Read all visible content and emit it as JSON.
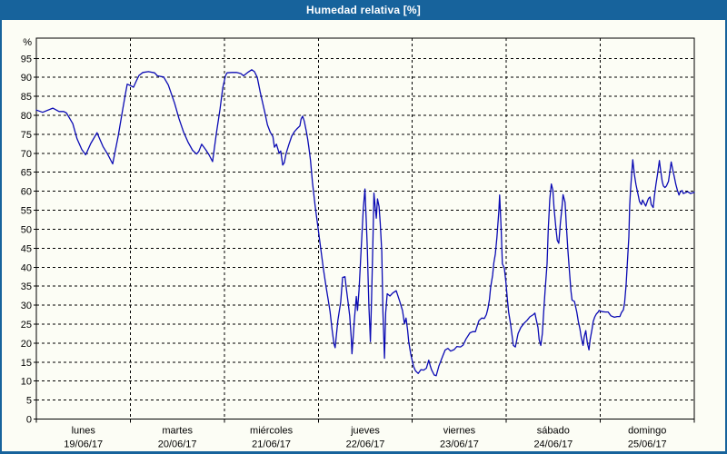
{
  "window": {
    "title": "Humedad relativa [%]"
  },
  "colors": {
    "frame_blue": "#17639c",
    "background": "#fcfdf5",
    "line_blue": "#0b0bb4",
    "grid_black": "#000000"
  },
  "chart_data": {
    "type": "line",
    "title": "Humedad relativa [%]",
    "ylabel": "%",
    "ylim": [
      0,
      100.5
    ],
    "y_tick_step": 5,
    "y_tick_max": 95,
    "grid": "dashed",
    "legend": "none",
    "x_axis_unit": "days",
    "x_days": [
      {
        "name": "lunes",
        "date": "19/06/17"
      },
      {
        "name": "martes",
        "date": "20/06/17"
      },
      {
        "name": "miércoles",
        "date": "21/06/17"
      },
      {
        "name": "jueves",
        "date": "22/06/17"
      },
      {
        "name": "viernes",
        "date": "23/06/17"
      },
      {
        "name": "sábado",
        "date": "24/06/17"
      },
      {
        "name": "domingo",
        "date": "25/06/17"
      }
    ],
    "series": [
      {
        "name": "Humedad relativa [%]",
        "x_unit": "hours_since_2017-06-19T00:00",
        "points": [
          [
            0.0,
            81.4
          ],
          [
            1.6,
            80.8
          ],
          [
            4.2,
            81.9
          ],
          [
            5.8,
            81.0
          ],
          [
            7.0,
            81.0
          ],
          [
            7.7,
            80.6
          ],
          [
            9.3,
            77.8
          ],
          [
            10.4,
            73.8
          ],
          [
            11.6,
            71.0
          ],
          [
            12.6,
            69.6
          ],
          [
            13.9,
            72.6
          ],
          [
            15.5,
            75.4
          ],
          [
            17.0,
            71.8
          ],
          [
            18.2,
            69.8
          ],
          [
            19.5,
            67.2
          ],
          [
            20.9,
            74.6
          ],
          [
            22.1,
            81.8
          ],
          [
            22.8,
            86.0
          ],
          [
            23.2,
            88.2
          ],
          [
            24.1,
            87.8
          ],
          [
            24.8,
            87.4
          ],
          [
            25.5,
            89.0
          ],
          [
            26.2,
            90.5
          ],
          [
            27.2,
            91.3
          ],
          [
            28.6,
            91.5
          ],
          [
            30.2,
            91.2
          ],
          [
            30.9,
            90.4
          ],
          [
            32.5,
            90.1
          ],
          [
            33.7,
            88.0
          ],
          [
            35.3,
            83.2
          ],
          [
            36.4,
            79.2
          ],
          [
            37.6,
            75.6
          ],
          [
            38.8,
            72.8
          ],
          [
            39.9,
            70.8
          ],
          [
            40.9,
            69.8
          ],
          [
            41.5,
            70.5
          ],
          [
            42.2,
            72.4
          ],
          [
            43.2,
            71.0
          ],
          [
            44.1,
            69.6
          ],
          [
            45.0,
            67.8
          ],
          [
            46.0,
            75.4
          ],
          [
            46.9,
            81.6
          ],
          [
            47.6,
            87.2
          ],
          [
            48.3,
            90.4
          ],
          [
            48.7,
            91.2
          ],
          [
            49.9,
            91.3
          ],
          [
            51.1,
            91.3
          ],
          [
            52.2,
            91.0
          ],
          [
            52.9,
            90.4
          ],
          [
            54.1,
            91.4
          ],
          [
            55.0,
            92.0
          ],
          [
            55.7,
            91.5
          ],
          [
            56.4,
            90.0
          ],
          [
            57.1,
            86.4
          ],
          [
            57.8,
            83.2
          ],
          [
            58.3,
            81.0
          ],
          [
            59.0,
            77.5
          ],
          [
            59.7,
            75.6
          ],
          [
            60.4,
            74.4
          ],
          [
            60.8,
            71.6
          ],
          [
            61.3,
            72.4
          ],
          [
            62.0,
            70.0
          ],
          [
            62.4,
            70.6
          ],
          [
            62.9,
            66.9
          ],
          [
            63.3,
            67.5
          ],
          [
            63.8,
            70.0
          ],
          [
            64.5,
            72.4
          ],
          [
            65.2,
            74.5
          ],
          [
            65.9,
            75.7
          ],
          [
            66.6,
            76.5
          ],
          [
            67.3,
            77.2
          ],
          [
            67.6,
            79.0
          ],
          [
            68.0,
            79.8
          ],
          [
            68.4,
            78.5
          ],
          [
            68.9,
            76.0
          ],
          [
            69.3,
            73.7
          ],
          [
            69.6,
            71.5
          ],
          [
            70.0,
            68.1
          ],
          [
            70.5,
            62.4
          ],
          [
            71.2,
            56.1
          ],
          [
            71.9,
            50.5
          ],
          [
            72.6,
            45.0
          ],
          [
            73.3,
            39.5
          ],
          [
            74.0,
            34.7
          ],
          [
            74.5,
            31.5
          ],
          [
            75.0,
            28.3
          ],
          [
            75.5,
            23.6
          ],
          [
            76.0,
            19.8
          ],
          [
            76.3,
            18.8
          ],
          [
            77.0,
            26.0
          ],
          [
            77.7,
            30.8
          ],
          [
            78.2,
            37.3
          ],
          [
            78.8,
            37.5
          ],
          [
            79.2,
            34.0
          ],
          [
            79.6,
            30.8
          ],
          [
            80.0,
            27.2
          ],
          [
            80.4,
            21.5
          ],
          [
            80.6,
            17.2
          ],
          [
            81.0,
            23.0
          ],
          [
            81.2,
            26.0
          ],
          [
            81.7,
            32.3
          ],
          [
            82.0,
            28.6
          ],
          [
            82.4,
            34.0
          ],
          [
            82.8,
            41.9
          ],
          [
            83.2,
            50.0
          ],
          [
            83.5,
            55.5
          ],
          [
            83.9,
            60.6
          ],
          [
            84.2,
            53.0
          ],
          [
            84.5,
            45.0
          ],
          [
            84.7,
            37.7
          ],
          [
            84.9,
            30.0
          ],
          [
            85.3,
            20.4
          ],
          [
            85.6,
            32.0
          ],
          [
            85.9,
            45.0
          ],
          [
            86.2,
            59.5
          ],
          [
            86.6,
            55.0
          ],
          [
            86.8,
            52.9
          ],
          [
            87.1,
            58.0
          ],
          [
            87.5,
            56.0
          ],
          [
            87.8,
            51.7
          ],
          [
            88.2,
            44.1
          ],
          [
            88.5,
            28.0
          ],
          [
            88.9,
            16.0
          ],
          [
            89.2,
            28.0
          ],
          [
            89.6,
            33.0
          ],
          [
            90.3,
            32.4
          ],
          [
            91.0,
            33.2
          ],
          [
            91.9,
            33.8
          ],
          [
            92.8,
            31.0
          ],
          [
            93.5,
            28.6
          ],
          [
            94.0,
            25.1
          ],
          [
            94.4,
            26.6
          ],
          [
            94.8,
            23.5
          ],
          [
            95.1,
            20.3
          ],
          [
            95.6,
            17.1
          ],
          [
            96.3,
            13.9
          ],
          [
            96.8,
            12.7
          ],
          [
            97.5,
            12.0
          ],
          [
            98.2,
            13.0
          ],
          [
            98.9,
            12.9
          ],
          [
            99.6,
            13.4
          ],
          [
            100.2,
            15.5
          ],
          [
            100.6,
            14.0
          ],
          [
            100.9,
            13.0
          ],
          [
            101.6,
            11.6
          ],
          [
            102.1,
            11.4
          ],
          [
            102.8,
            14.0
          ],
          [
            103.7,
            16.4
          ],
          [
            104.4,
            18.2
          ],
          [
            105.1,
            18.6
          ],
          [
            105.8,
            17.9
          ],
          [
            106.7,
            18.3
          ],
          [
            107.4,
            19.1
          ],
          [
            108.3,
            19.0
          ],
          [
            109.0,
            19.5
          ],
          [
            109.7,
            21.1
          ],
          [
            110.7,
            22.7
          ],
          [
            111.4,
            23.0
          ],
          [
            112.1,
            23.0
          ],
          [
            112.5,
            24.3
          ],
          [
            113.0,
            25.9
          ],
          [
            113.7,
            26.6
          ],
          [
            114.4,
            26.5
          ],
          [
            114.9,
            27.5
          ],
          [
            115.3,
            29.1
          ],
          [
            115.7,
            31.5
          ],
          [
            116.0,
            34.7
          ],
          [
            116.5,
            37.9
          ],
          [
            116.8,
            41.1
          ],
          [
            117.2,
            43.5
          ],
          [
            117.6,
            47.8
          ],
          [
            118.1,
            55.0
          ],
          [
            118.3,
            59.0
          ],
          [
            118.7,
            50.0
          ],
          [
            119.0,
            40.9
          ],
          [
            119.5,
            39.7
          ],
          [
            119.9,
            36.1
          ],
          [
            120.3,
            31.3
          ],
          [
            120.6,
            28.2
          ],
          [
            121.1,
            24.9
          ],
          [
            121.8,
            19.4
          ],
          [
            122.3,
            19.0
          ],
          [
            123.0,
            22.5
          ],
          [
            123.7,
            24.1
          ],
          [
            124.6,
            25.3
          ],
          [
            125.3,
            26.0
          ],
          [
            126.0,
            26.9
          ],
          [
            126.9,
            27.5
          ],
          [
            127.3,
            27.9
          ],
          [
            127.6,
            26.4
          ],
          [
            128.1,
            24.1
          ],
          [
            128.4,
            20.9
          ],
          [
            128.8,
            19.4
          ],
          [
            129.2,
            22.5
          ],
          [
            129.6,
            29.0
          ],
          [
            129.9,
            33.7
          ],
          [
            130.4,
            40.9
          ],
          [
            130.7,
            49.9
          ],
          [
            131.1,
            57.9
          ],
          [
            131.5,
            61.9
          ],
          [
            131.9,
            60.3
          ],
          [
            132.2,
            55.5
          ],
          [
            132.7,
            49.9
          ],
          [
            133.0,
            47.1
          ],
          [
            133.4,
            46.3
          ],
          [
            133.8,
            51.5
          ],
          [
            134.2,
            55.5
          ],
          [
            134.5,
            59.1
          ],
          [
            135.0,
            57.1
          ],
          [
            135.3,
            51.5
          ],
          [
            135.7,
            44.9
          ],
          [
            136.1,
            39.3
          ],
          [
            136.5,
            33.7
          ],
          [
            136.8,
            31.3
          ],
          [
            137.4,
            31.0
          ],
          [
            138.0,
            28.2
          ],
          [
            138.4,
            25.7
          ],
          [
            138.8,
            23.7
          ],
          [
            139.1,
            21.7
          ],
          [
            139.6,
            19.4
          ],
          [
            139.9,
            21.7
          ],
          [
            140.3,
            23.3
          ],
          [
            140.7,
            20.1
          ],
          [
            141.1,
            18.2
          ],
          [
            141.4,
            20.9
          ],
          [
            141.9,
            23.7
          ],
          [
            142.2,
            25.7
          ],
          [
            142.6,
            26.9
          ],
          [
            143.0,
            27.7
          ],
          [
            143.4,
            28.1
          ],
          [
            143.7,
            28.6
          ],
          [
            144.4,
            28.3
          ],
          [
            145.3,
            28.2
          ],
          [
            146.0,
            28.2
          ],
          [
            146.7,
            27.2
          ],
          [
            147.6,
            26.8
          ],
          [
            148.3,
            27.0
          ],
          [
            149.0,
            27.0
          ],
          [
            149.4,
            28.0
          ],
          [
            149.9,
            28.8
          ],
          [
            150.2,
            30.6
          ],
          [
            150.6,
            35.4
          ],
          [
            150.9,
            40.9
          ],
          [
            151.3,
            48.0
          ],
          [
            151.5,
            56.1
          ],
          [
            151.7,
            60.1
          ],
          [
            152.0,
            64.2
          ],
          [
            152.3,
            68.3
          ],
          [
            152.7,
            64.4
          ],
          [
            153.1,
            61.8
          ],
          [
            153.6,
            59.4
          ],
          [
            154.0,
            57.3
          ],
          [
            154.5,
            56.5
          ],
          [
            154.8,
            57.7
          ],
          [
            155.2,
            56.9
          ],
          [
            155.6,
            56.1
          ],
          [
            156.0,
            57.3
          ],
          [
            156.3,
            58.1
          ],
          [
            156.7,
            58.5
          ],
          [
            157.0,
            56.5
          ],
          [
            157.5,
            55.7
          ],
          [
            157.8,
            58.5
          ],
          [
            158.2,
            61.8
          ],
          [
            158.6,
            64.4
          ],
          [
            159.1,
            68.1
          ],
          [
            159.4,
            65.6
          ],
          [
            159.8,
            62.6
          ],
          [
            160.1,
            61.4
          ],
          [
            160.5,
            61.0
          ],
          [
            160.9,
            61.4
          ],
          [
            161.4,
            62.6
          ],
          [
            162.1,
            67.7
          ],
          [
            162.6,
            65.2
          ],
          [
            162.9,
            63.8
          ],
          [
            163.3,
            61.8
          ],
          [
            163.7,
            60.2
          ],
          [
            164.1,
            59.0
          ],
          [
            164.4,
            59.8
          ],
          [
            164.9,
            60.2
          ],
          [
            165.2,
            59.4
          ],
          [
            165.7,
            59.6
          ],
          [
            166.3,
            59.9
          ],
          [
            167.0,
            59.4
          ],
          [
            168.0,
            59.7
          ]
        ]
      }
    ]
  }
}
